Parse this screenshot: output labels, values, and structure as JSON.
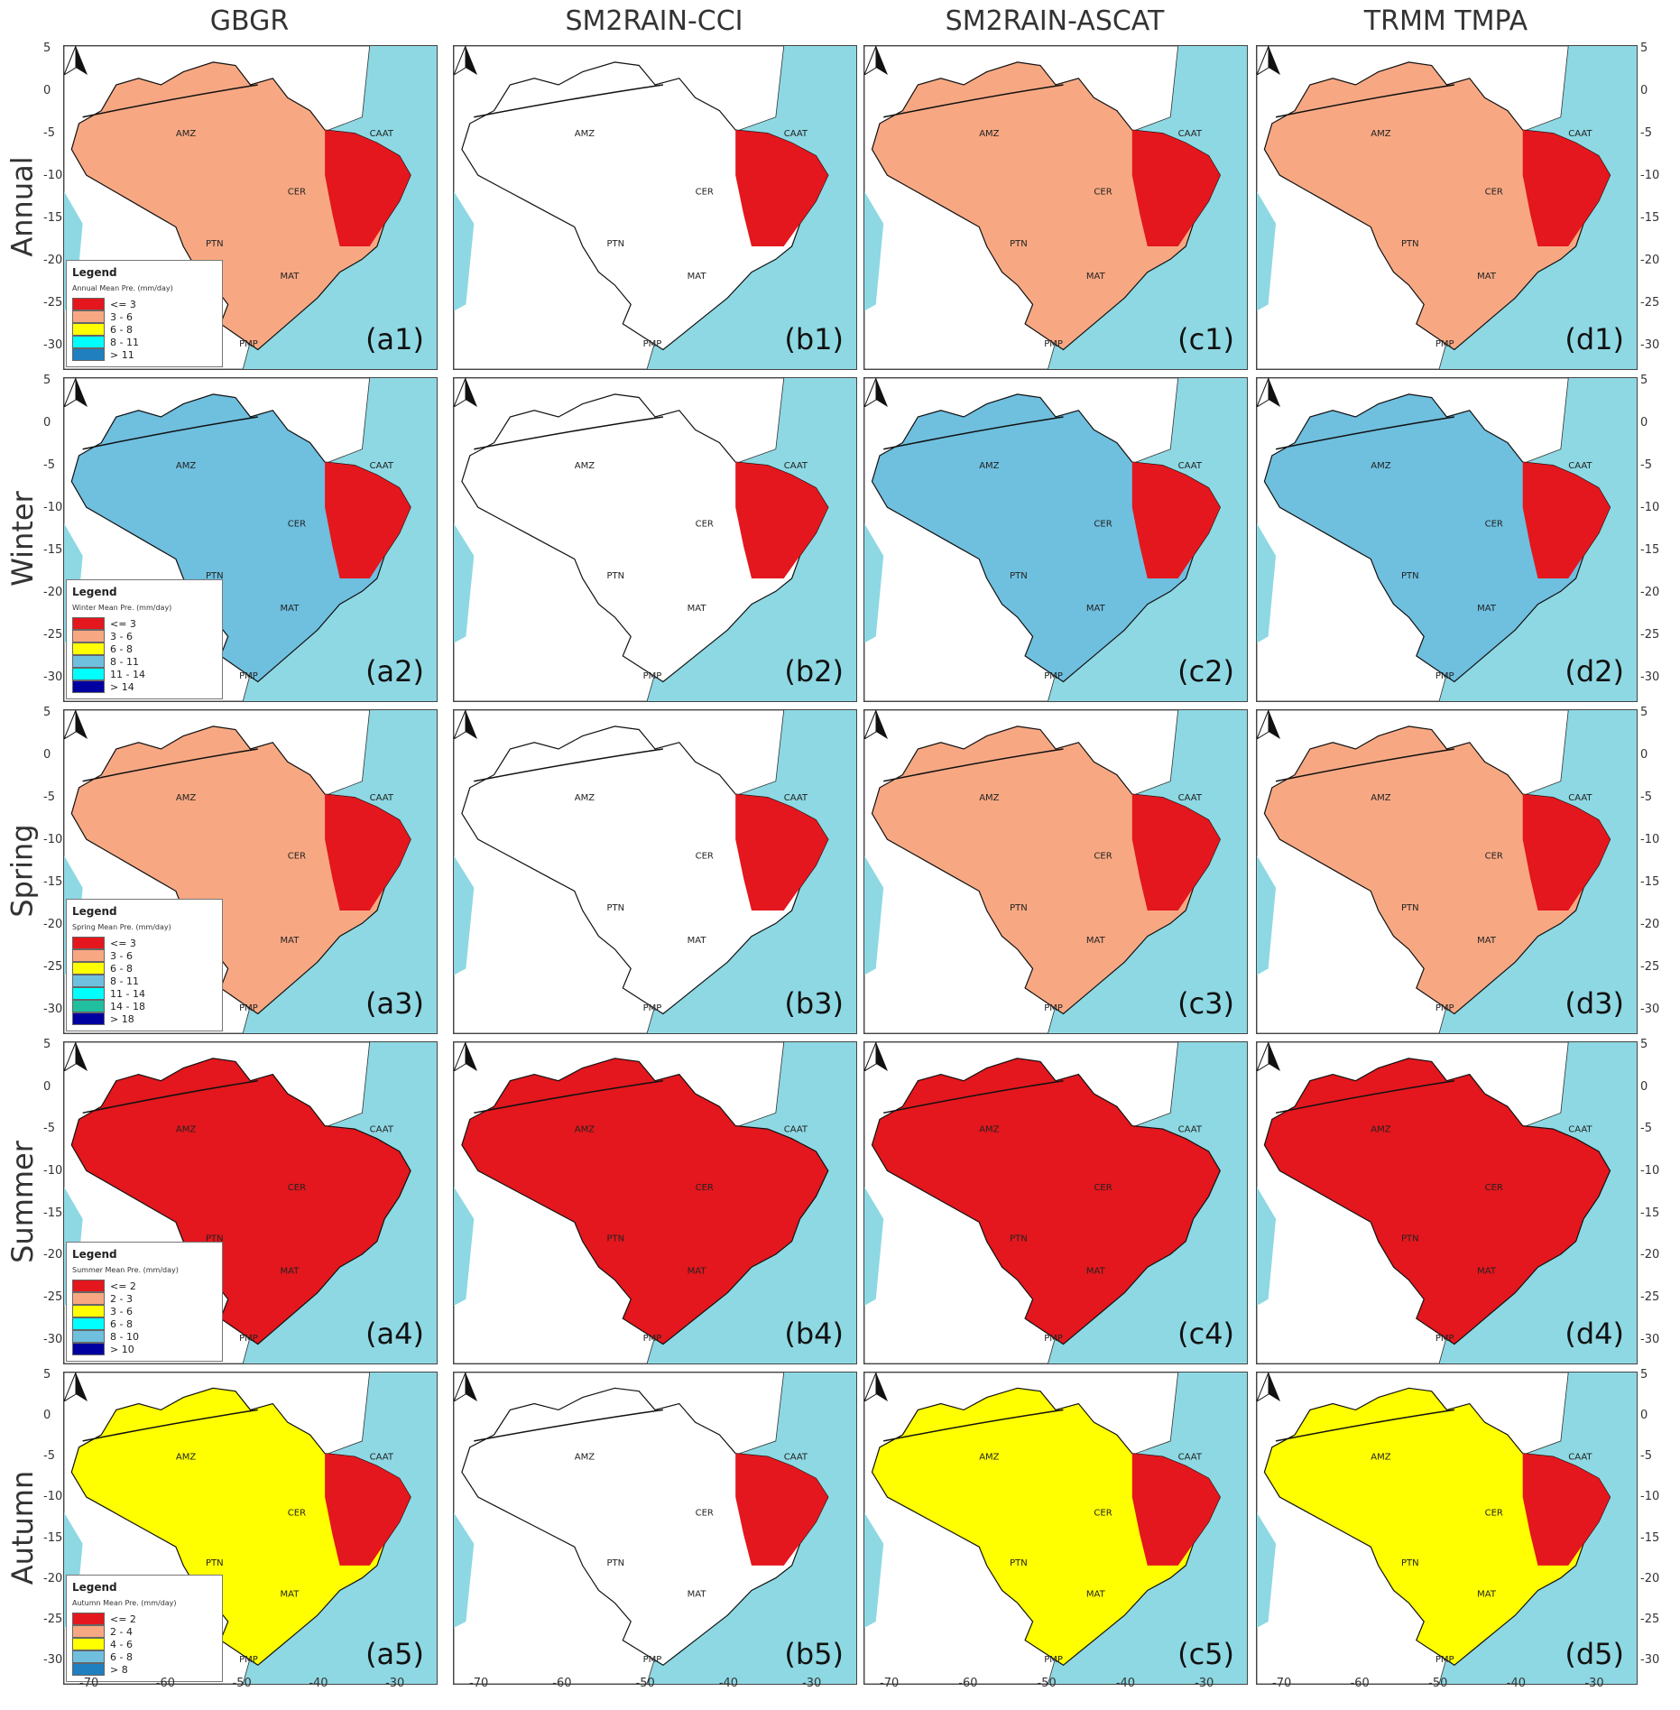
{
  "columns": [
    "GBGR",
    "SM2RAIN-CCI",
    "SM2RAIN-ASCAT",
    "TRMM TMPA"
  ],
  "rows": [
    "Annual",
    "Winter",
    "Spring",
    "Summer",
    "Autumn"
  ],
  "panel_labels": [
    [
      "(a1)",
      "(b1)",
      "(c1)",
      "(d1)"
    ],
    [
      "(a2)",
      "(b2)",
      "(c2)",
      "(d2)"
    ],
    [
      "(a3)",
      "(b3)",
      "(c3)",
      "(d3)"
    ],
    [
      "(a4)",
      "(b4)",
      "(c4)",
      "(d4)"
    ],
    [
      "(a5)",
      "(b5)",
      "(c5)",
      "(d5)"
    ]
  ],
  "region_labels": [
    "AMZ",
    "CAAT",
    "CER",
    "PTN",
    "MAT",
    "PMP"
  ],
  "legends": [
    {
      "title": "Legend",
      "subtitle": "Annual Mean Pre. (mm/day)",
      "items": [
        {
          "label": "<= 3",
          "color": "#e3171d"
        },
        {
          "label": "3 - 6",
          "color": "#f7a883"
        },
        {
          "label": "6 - 8",
          "color": "#ffff00"
        },
        {
          "label": "8 - 11",
          "color": "#00ffff"
        },
        {
          "label": "> 11",
          "color": "#1f7fbf"
        }
      ]
    },
    {
      "title": "Legend",
      "subtitle": "Winter Mean Pre. (mm/day)",
      "items": [
        {
          "label": "<= 3",
          "color": "#e3171d"
        },
        {
          "label": "3 - 6",
          "color": "#f7a883"
        },
        {
          "label": "6 - 8",
          "color": "#ffff00"
        },
        {
          "label": "8 - 11",
          "color": "#6fbfdf"
        },
        {
          "label": "11 - 14",
          "color": "#00ffff"
        },
        {
          "label": "> 14",
          "color": "#0000a0"
        }
      ]
    },
    {
      "title": "Legend",
      "subtitle": "Spring Mean Pre. (mm/day)",
      "items": [
        {
          "label": "<= 3",
          "color": "#e3171d"
        },
        {
          "label": "3 - 6",
          "color": "#f7a883"
        },
        {
          "label": "6 - 8",
          "color": "#ffff00"
        },
        {
          "label": "8 - 11",
          "color": "#6fbfdf"
        },
        {
          "label": "11 - 14",
          "color": "#00ffff"
        },
        {
          "label": "14 - 18",
          "color": "#1fbfa0"
        },
        {
          "label": "> 18",
          "color": "#0000a0"
        }
      ]
    },
    {
      "title": "Legend",
      "subtitle": "Summer Mean Pre. (mm/day)",
      "items": [
        {
          "label": "<= 2",
          "color": "#e3171d"
        },
        {
          "label": "2 - 3",
          "color": "#f7a883"
        },
        {
          "label": "3 - 6",
          "color": "#ffff00"
        },
        {
          "label": "6 - 8",
          "color": "#00ffff"
        },
        {
          "label": "8 - 10",
          "color": "#6fbfdf"
        },
        {
          "label": "> 10",
          "color": "#0000a0"
        }
      ]
    },
    {
      "title": "Legend",
      "subtitle": "Autumn Mean Pre. (mm/day)",
      "items": [
        {
          "label": "<= 2",
          "color": "#e3171d"
        },
        {
          "label": "2 - 4",
          "color": "#f7a883"
        },
        {
          "label": "4 - 6",
          "color": "#ffff00"
        },
        {
          "label": "6 - 8",
          "color": "#6fbfdf"
        },
        {
          "label": "> 8",
          "color": "#1f7fbf"
        }
      ]
    }
  ],
  "y_ticks": [
    "5",
    "0",
    "-5",
    "-10",
    "-15",
    "-20",
    "-25",
    "-30"
  ],
  "x_ticks": [
    "-70",
    "-60",
    "-50",
    "-40",
    "-30"
  ],
  "fills": [
    [
      "#f7a883",
      "#ffffff",
      "#f7a883",
      "#f7a883"
    ],
    [
      "#6fbfdf",
      "#ffffff",
      "#6fbfdf",
      "#6fbfdf"
    ],
    [
      "#f7a883",
      "#ffffff",
      "#f7a883",
      "#f7a883"
    ],
    [
      "#e3171d",
      "#e3171d",
      "#e3171d",
      "#e3171d"
    ],
    [
      "#ffff00",
      "#ffffff",
      "#ffff00",
      "#ffff00"
    ]
  ],
  "ocean_color": "#8dd8e3",
  "land_color": "#ffffff"
}
